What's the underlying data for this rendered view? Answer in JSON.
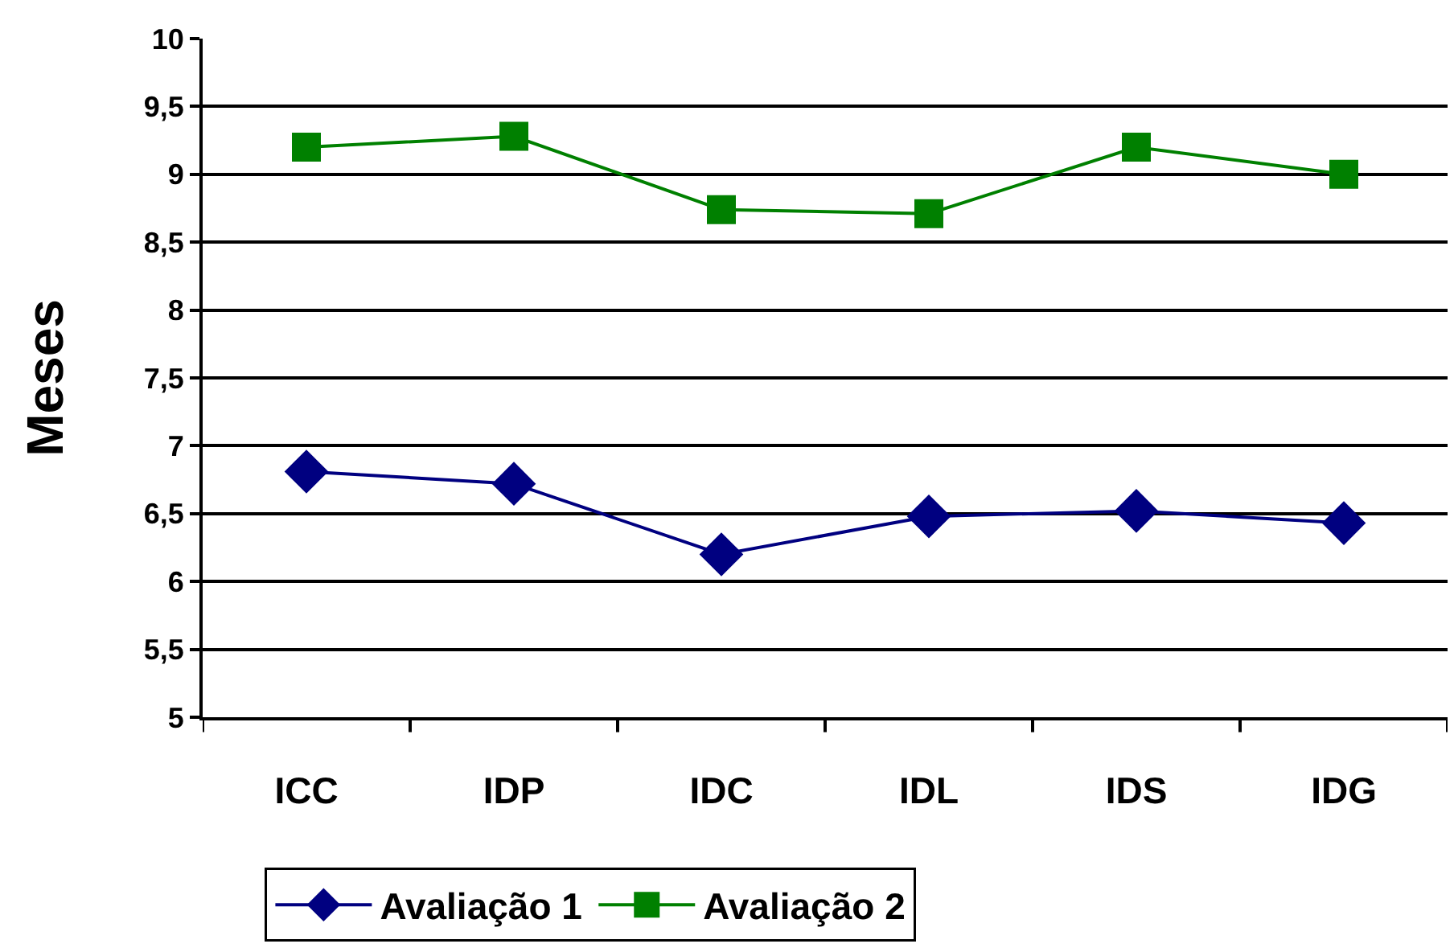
{
  "chart_data": {
    "type": "line",
    "ylabel": "Meses",
    "categories": [
      "ICC",
      "IDP",
      "IDC",
      "IDL",
      "IDS",
      "IDG"
    ],
    "series": [
      {
        "name": "Avaliação 1",
        "color": "#000080",
        "marker": "diamond",
        "values": [
          6.81,
          6.72,
          6.2,
          6.48,
          6.52,
          6.43
        ]
      },
      {
        "name": "Avaliação 2",
        "color": "#008000",
        "marker": "square",
        "values": [
          9.2,
          9.28,
          8.74,
          8.71,
          9.2,
          9.0
        ]
      }
    ],
    "ylim": [
      5,
      10
    ],
    "yticks": [
      5,
      {
        "value": 5.5,
        "label": "5,5"
      },
      6,
      {
        "value": 6.5,
        "label": "6,5"
      },
      7,
      {
        "value": 7.5,
        "label": "7,5"
      },
      8,
      {
        "value": 8.5,
        "label": "8,5"
      },
      9,
      {
        "value": 9.5,
        "label": "9,5"
      },
      10
    ],
    "grid": "y",
    "legend": "bottom",
    "line_style": "solid"
  }
}
